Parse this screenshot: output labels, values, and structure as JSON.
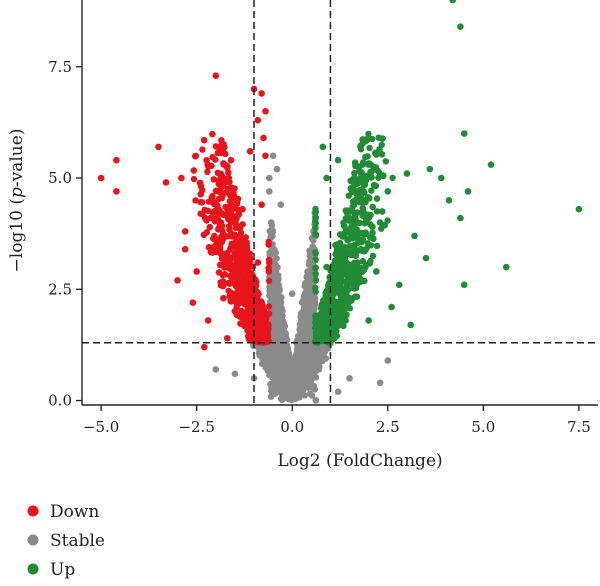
{
  "chart_data": {
    "type": "scatter",
    "title": "",
    "xlabel": "Log2 (FoldChange)",
    "ylabel_prefix": "−log10 (",
    "ylabel_italic": "p",
    "ylabel_suffix": "-value)",
    "xlim": [
      -5.5,
      8.0
    ],
    "ylim": [
      -0.1,
      9.0
    ],
    "x_ticks": [
      -5.0,
      -2.5,
      0.0,
      2.5,
      5.0,
      7.5
    ],
    "x_tick_labels": [
      "−5.0",
      "−2.5",
      "0.0",
      "2.5",
      "5.0",
      "7.5"
    ],
    "y_ticks": [
      0.0,
      2.5,
      5.0,
      7.5
    ],
    "y_tick_labels": [
      "0.0",
      "2.5",
      "5.0",
      "7.5"
    ],
    "thresholds": {
      "x": [
        -1,
        1
      ],
      "y": 1.3
    },
    "legend_position": "bottom-left",
    "series": [
      {
        "name": "Down",
        "color": "#e8141c",
        "points": [
          [
            -5.0,
            5.0
          ],
          [
            -4.6,
            5.4
          ],
          [
            -4.6,
            4.7
          ],
          [
            -3.5,
            5.7
          ],
          [
            -3.3,
            4.9
          ],
          [
            -2.9,
            5.0
          ],
          [
            -2.8,
            3.8
          ],
          [
            -2.0,
            7.3
          ],
          [
            -1.6,
            5.4
          ],
          [
            -1.3,
            4.3
          ],
          [
            -1.1,
            5.6
          ],
          [
            -1.0,
            7.0
          ],
          [
            -0.8,
            6.9
          ],
          [
            -0.7,
            6.5
          ],
          [
            -0.7,
            5.5
          ],
          [
            -0.9,
            6.3
          ],
          [
            -0.75,
            5.9
          ],
          [
            -0.8,
            4.4
          ],
          [
            -2.5,
            2.9
          ],
          [
            -1.8,
            2.3
          ],
          [
            -2.2,
            1.8
          ],
          [
            -3.0,
            2.7
          ],
          [
            -2.6,
            2.2
          ],
          [
            -1.5,
            3.3
          ],
          [
            -1.0,
            2.2
          ],
          [
            -0.8,
            1.5
          ],
          [
            -2.3,
            1.2
          ],
          [
            -1.7,
            1.4
          ],
          [
            -1.2,
            1.9
          ],
          [
            -2.8,
            3.4
          ],
          [
            -1.4,
            2.8
          ],
          [
            -0.9,
            3.1
          ]
        ]
      },
      {
        "name": "Stable",
        "color": "#8a8a8a",
        "points": [
          [
            0.0,
            0.05
          ],
          [
            -0.1,
            0.4
          ],
          [
            0.1,
            0.3
          ],
          [
            -0.2,
            0.9
          ],
          [
            0.2,
            0.8
          ],
          [
            -0.3,
            1.6
          ],
          [
            0.3,
            1.5
          ],
          [
            -0.4,
            2.4
          ],
          [
            0.4,
            2.2
          ],
          [
            -0.5,
            3.3
          ],
          [
            0.5,
            3.1
          ],
          [
            -0.55,
            4.0
          ],
          [
            0.55,
            3.6
          ],
          [
            -0.6,
            4.7
          ],
          [
            -0.3,
            4.4
          ],
          [
            -0.4,
            5.2
          ],
          [
            -0.5,
            5.5
          ],
          [
            -0.6,
            5.0
          ],
          [
            0.0,
            2.4
          ],
          [
            -1.5,
            0.6
          ],
          [
            1.5,
            0.5
          ],
          [
            2.3,
            0.4
          ],
          [
            -2.0,
            0.7
          ],
          [
            2.5,
            0.9
          ],
          [
            1.2,
            0.2
          ],
          [
            -1.0,
            0.5
          ],
          [
            0.7,
            0.7
          ],
          [
            -0.7,
            0.9
          ]
        ]
      },
      {
        "name": "Up",
        "color": "#228b35",
        "points": [
          [
            4.2,
            9.0
          ],
          [
            4.4,
            8.4
          ],
          [
            4.5,
            6.0
          ],
          [
            5.2,
            5.3
          ],
          [
            3.6,
            5.2
          ],
          [
            3.0,
            5.1
          ],
          [
            2.5,
            4.7
          ],
          [
            3.9,
            5.0
          ],
          [
            4.1,
            4.5
          ],
          [
            4.6,
            4.7
          ],
          [
            4.4,
            4.1
          ],
          [
            7.5,
            4.3
          ],
          [
            5.6,
            3.0
          ],
          [
            4.5,
            2.6
          ],
          [
            1.2,
            5.4
          ],
          [
            0.9,
            5.0
          ],
          [
            0.8,
            5.7
          ],
          [
            1.6,
            4.0
          ],
          [
            2.3,
            4.0
          ],
          [
            3.2,
            3.7
          ],
          [
            1.5,
            2.3
          ],
          [
            2.0,
            1.8
          ],
          [
            1.1,
            1.4
          ],
          [
            2.8,
            2.6
          ],
          [
            3.5,
            3.2
          ],
          [
            2.2,
            2.9
          ],
          [
            1.4,
            1.8
          ],
          [
            3.1,
            1.7
          ],
          [
            0.9,
            3.0
          ],
          [
            2.6,
            2.1
          ],
          [
            1.8,
            3.4
          ],
          [
            0.8,
            1.8
          ]
        ]
      }
    ]
  }
}
